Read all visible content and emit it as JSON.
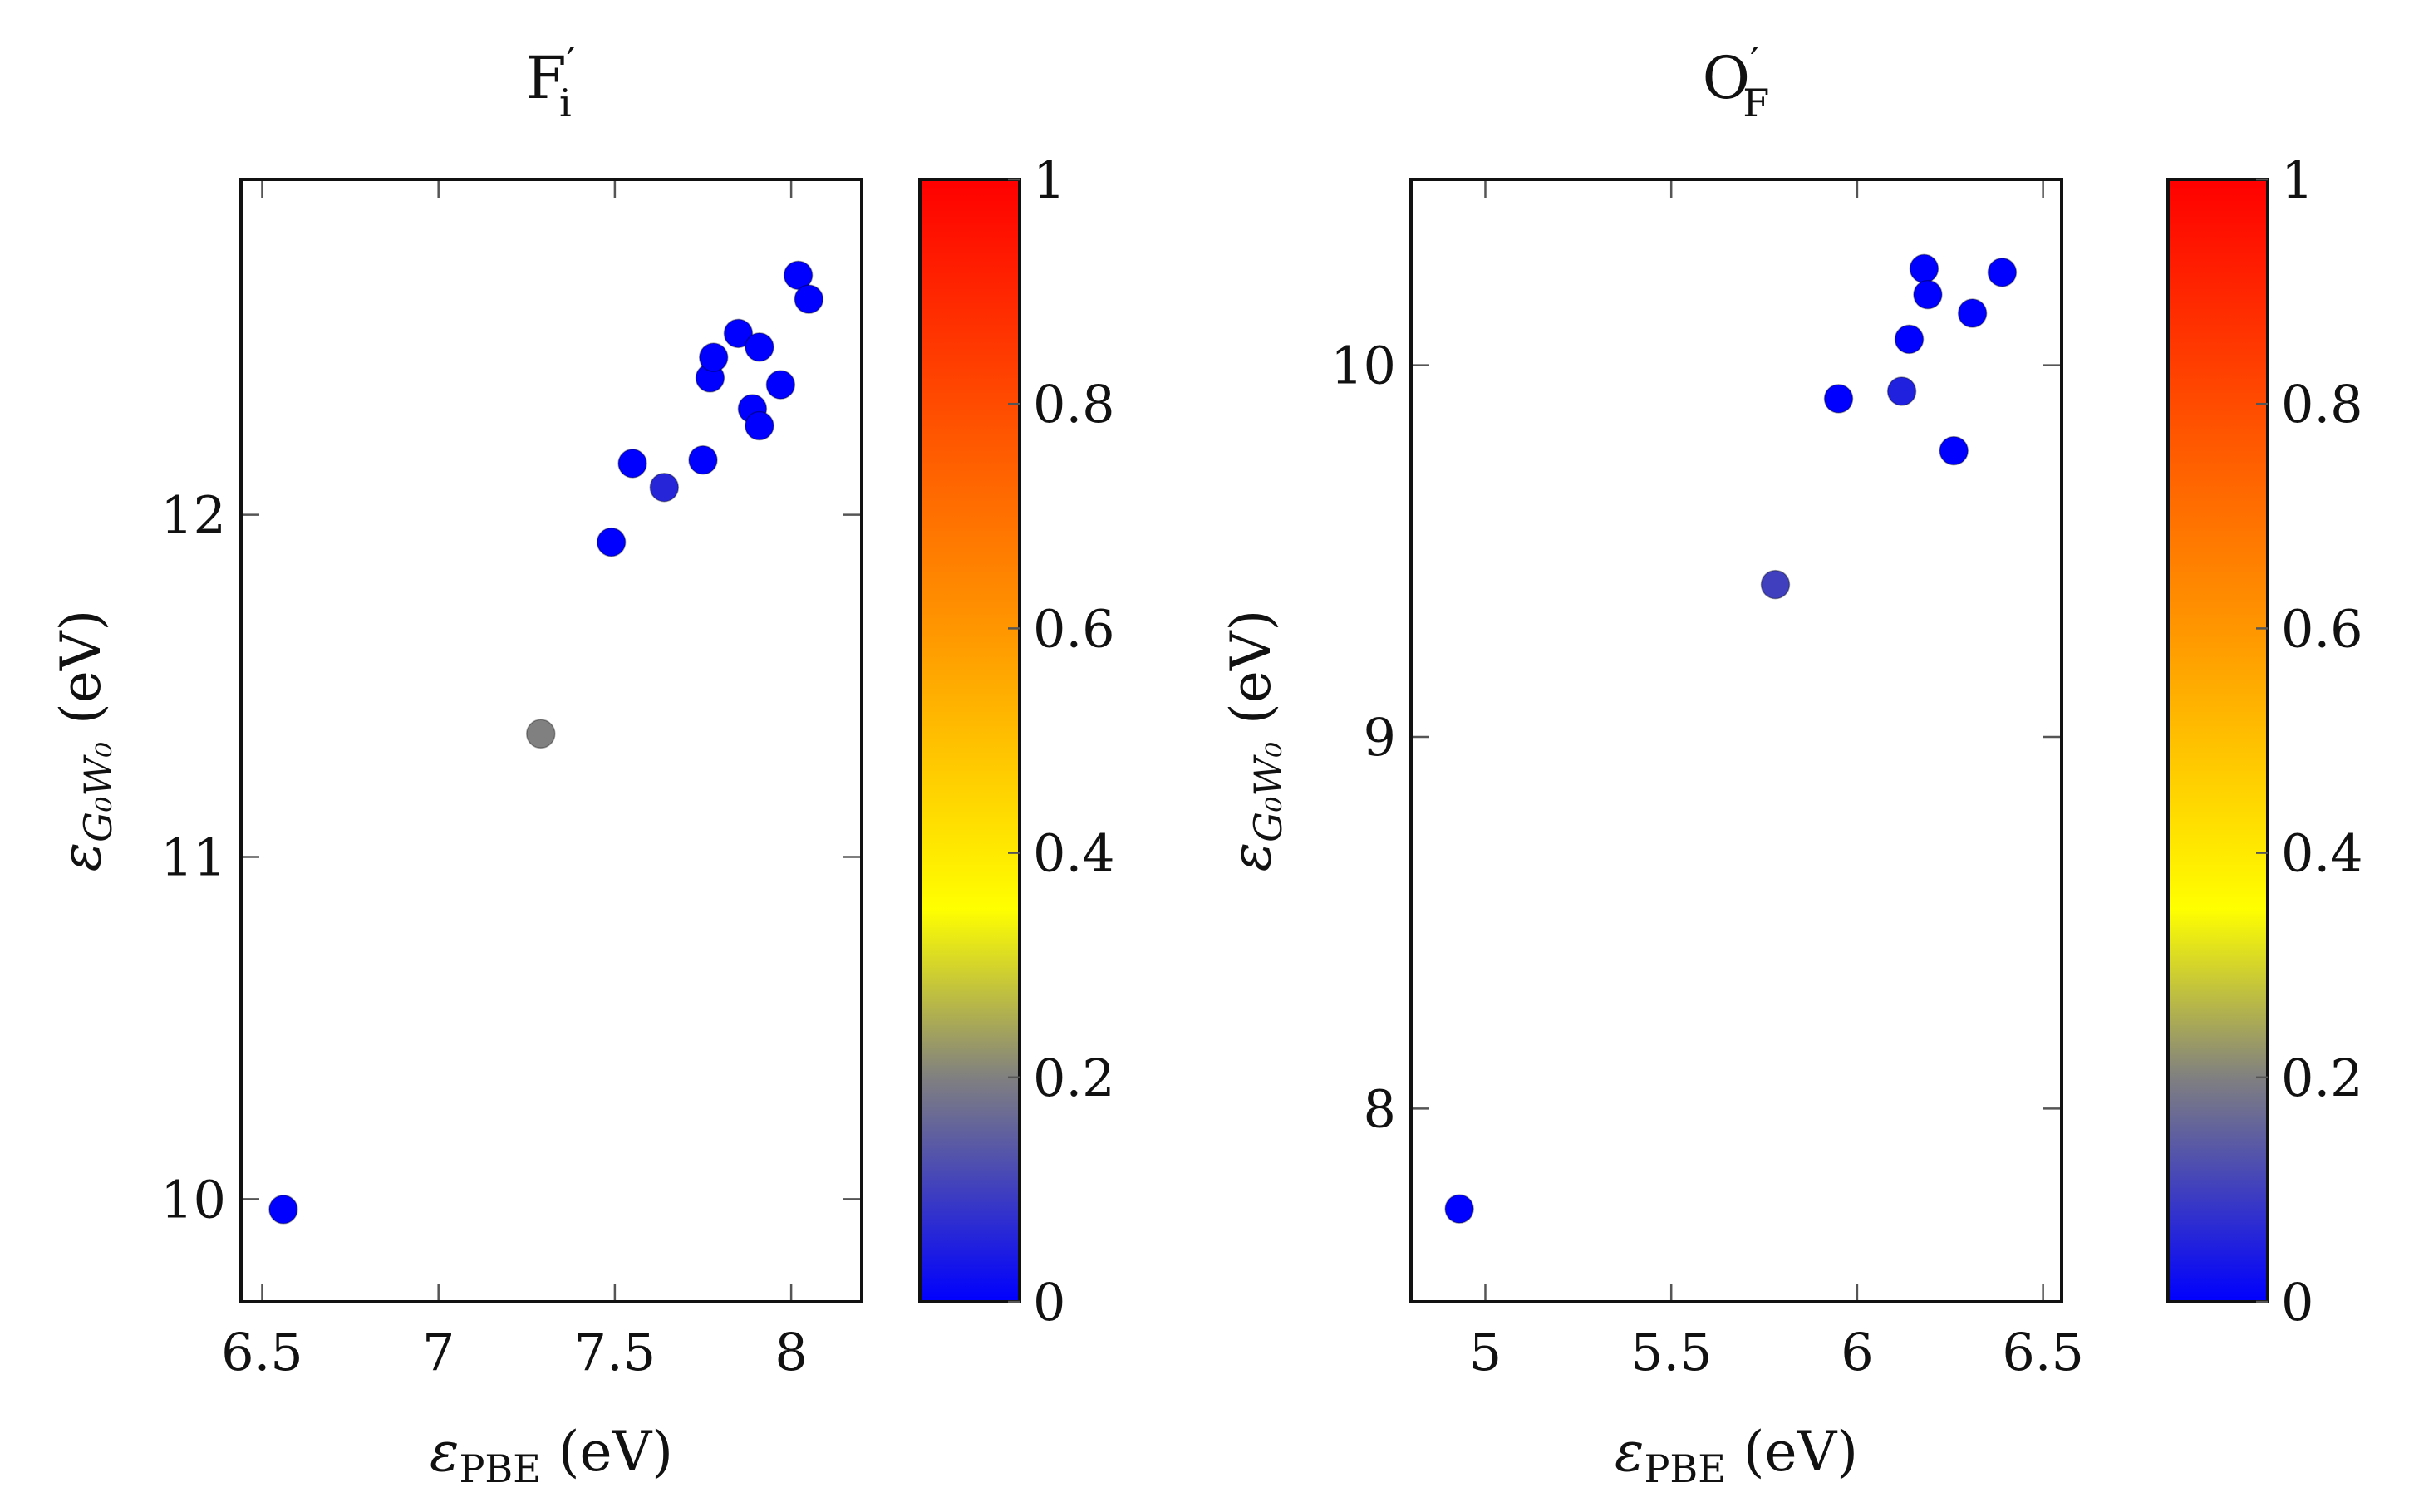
{
  "chart_data": [
    {
      "type": "scatter",
      "title": "F",
      "title_subscript": "i",
      "title_prime": "′",
      "xlabel": "ε",
      "xlabel_subscript": "PBE",
      "xlabel_unit": " (eV)",
      "ylabel": "ε",
      "ylabel_subscript": "G₀W₀",
      "ylabel_unit": " (eV)",
      "xlim": [
        6.44,
        8.2
      ],
      "ylim": [
        9.7,
        12.98
      ],
      "xticks": [
        6.5,
        7,
        7.5,
        8
      ],
      "xtick_labels": [
        "6.5",
        "7",
        "7.5",
        "8"
      ],
      "yticks": [
        10,
        11,
        12
      ],
      "ytick_labels": [
        "10",
        "11",
        "12"
      ],
      "colorbar": {
        "min": 0,
        "max": 1,
        "ticks": [
          0,
          0.2,
          0.4,
          0.6,
          0.8,
          1
        ],
        "tick_labels": [
          "0",
          "0.2",
          "0.4",
          "0.6",
          "0.8",
          "1"
        ]
      },
      "points": [
        {
          "x": 6.56,
          "y": 9.97,
          "c": 0.0
        },
        {
          "x": 7.29,
          "y": 11.36,
          "c": 0.2
        },
        {
          "x": 7.49,
          "y": 11.92,
          "c": 0.0
        },
        {
          "x": 7.55,
          "y": 12.15,
          "c": 0.0
        },
        {
          "x": 7.64,
          "y": 12.08,
          "c": 0.06
        },
        {
          "x": 7.75,
          "y": 12.16,
          "c": 0.0
        },
        {
          "x": 7.77,
          "y": 12.4,
          "c": 0.0
        },
        {
          "x": 7.78,
          "y": 12.46,
          "c": 0.0
        },
        {
          "x": 7.85,
          "y": 12.53,
          "c": 0.0
        },
        {
          "x": 7.89,
          "y": 12.31,
          "c": 0.0
        },
        {
          "x": 7.91,
          "y": 12.26,
          "c": 0.0
        },
        {
          "x": 7.91,
          "y": 12.49,
          "c": 0.0
        },
        {
          "x": 7.97,
          "y": 12.38,
          "c": 0.0
        },
        {
          "x": 8.02,
          "y": 12.7,
          "c": 0.0
        },
        {
          "x": 8.05,
          "y": 12.63,
          "c": 0.0
        }
      ]
    },
    {
      "type": "scatter",
      "title": "O",
      "title_subscript": "F",
      "title_prime": "′",
      "xlabel": "ε",
      "xlabel_subscript": "PBE",
      "xlabel_unit": " (eV)",
      "ylabel": "ε",
      "ylabel_subscript": "G₀W₀",
      "ylabel_unit": " (eV)",
      "xlim": [
        4.8,
        6.55
      ],
      "ylim": [
        7.48,
        10.5
      ],
      "xticks": [
        5,
        5.5,
        6,
        6.5
      ],
      "xtick_labels": [
        "5",
        "5.5",
        "6",
        "6.5"
      ],
      "yticks": [
        8,
        9,
        10
      ],
      "ytick_labels": [
        "8",
        "9",
        "10"
      ],
      "colorbar": {
        "min": 0,
        "max": 1,
        "ticks": [
          0,
          0.2,
          0.4,
          0.6,
          0.8,
          1
        ],
        "tick_labels": [
          "0",
          "0.2",
          "0.4",
          "0.6",
          "0.8",
          "1"
        ]
      },
      "points": [
        {
          "x": 4.93,
          "y": 7.73,
          "c": 0.0
        },
        {
          "x": 5.78,
          "y": 9.41,
          "c": 0.1
        },
        {
          "x": 5.95,
          "y": 9.91,
          "c": 0.0
        },
        {
          "x": 6.12,
          "y": 9.93,
          "c": 0.05
        },
        {
          "x": 6.14,
          "y": 10.07,
          "c": 0.0
        },
        {
          "x": 6.18,
          "y": 10.26,
          "c": 0.0
        },
        {
          "x": 6.19,
          "y": 10.19,
          "c": 0.0
        },
        {
          "x": 6.26,
          "y": 9.77,
          "c": 0.0
        },
        {
          "x": 6.31,
          "y": 10.14,
          "c": 0.0
        },
        {
          "x": 6.39,
          "y": 10.25,
          "c": 0.0
        }
      ]
    }
  ]
}
